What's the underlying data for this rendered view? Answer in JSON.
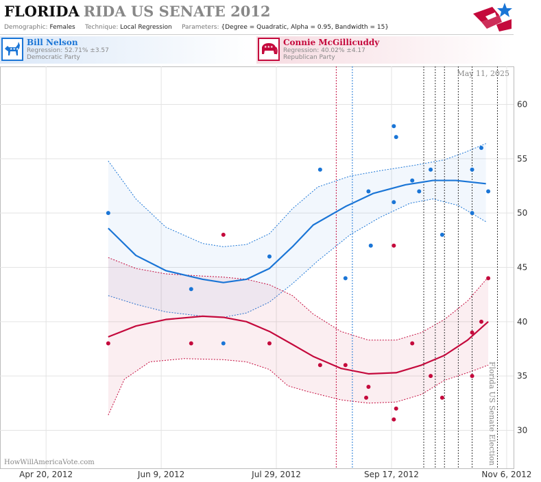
{
  "header": {
    "state": "FLORIDA",
    "race": "RIDA US SENATE 2012",
    "demographic_label": "Demographic:",
    "demographic_value": "Females",
    "technique_label": "Technique:",
    "technique_value": "Local Regression",
    "parameters_label": "Parameters:",
    "parameters_value": "{Degree = Quadratic, Alpha = 0.95, Bandwidth = 15}",
    "logo_icon": "star-flag-logo-icon"
  },
  "candidates": {
    "dem": {
      "name": "Bill Nelson",
      "regression": "Regression: 52.71% ±3.57",
      "party": "Democratic Party",
      "color": "#1a75d6",
      "icon": "donkey-icon"
    },
    "rep": {
      "name": "Connie McGillicuddy",
      "regression": "Regression: 40.02% ±4.17",
      "party": "Republican Party",
      "color": "#c4093c",
      "icon": "elephant-icon"
    }
  },
  "chart_data": {
    "type": "scatter",
    "date_stamp": "May 11, 2025",
    "watermark": "HowWillAmericaVote.com",
    "election_label": "Florida US Senate Election",
    "x_ticks": [
      "Apr 20, 2012",
      "Jun 9, 2012",
      "Jul 29, 2012",
      "Sep 17, 2012",
      "Nov 6, 2012"
    ],
    "xlim": [
      "2012-03-31",
      "2012-11-09"
    ],
    "y_ticks": [
      30,
      35,
      40,
      45,
      50,
      55,
      60
    ],
    "ylim": [
      26.5,
      63.5
    ],
    "grid": true,
    "series": [
      {
        "name": "Bill Nelson",
        "party": "dem",
        "color": "#1a75d6",
        "points": [
          [
            "2012-05-17",
            50
          ],
          [
            "2012-06-22",
            43
          ],
          [
            "2012-07-06",
            38
          ],
          [
            "2012-07-26",
            46
          ],
          [
            "2012-08-17",
            54
          ],
          [
            "2012-08-28",
            44
          ],
          [
            "2012-09-07",
            52
          ],
          [
            "2012-09-08",
            47
          ],
          [
            "2012-09-18",
            58
          ],
          [
            "2012-09-19",
            57
          ],
          [
            "2012-09-18",
            51
          ],
          [
            "2012-09-26",
            53
          ],
          [
            "2012-09-29",
            52
          ],
          [
            "2012-10-04",
            54
          ],
          [
            "2012-10-09",
            48
          ],
          [
            "2012-10-22",
            54
          ],
          [
            "2012-10-22",
            50
          ],
          [
            "2012-10-26",
            56
          ],
          [
            "2012-10-29",
            52
          ]
        ],
        "trend": [
          [
            "2012-05-17",
            48.6
          ],
          [
            "2012-05-29",
            46.1
          ],
          [
            "2012-06-11",
            44.7
          ],
          [
            "2012-06-27",
            43.9
          ],
          [
            "2012-07-06",
            43.6
          ],
          [
            "2012-07-16",
            43.9
          ],
          [
            "2012-07-26",
            44.9
          ],
          [
            "2012-08-05",
            46.9
          ],
          [
            "2012-08-14",
            48.9
          ],
          [
            "2012-08-28",
            50.6
          ],
          [
            "2012-09-09",
            51.8
          ],
          [
            "2012-09-23",
            52.6
          ],
          [
            "2012-10-05",
            53.0
          ],
          [
            "2012-10-15",
            53.0
          ],
          [
            "2012-10-28",
            52.7
          ]
        ],
        "upper": [
          [
            "2012-05-17",
            54.8
          ],
          [
            "2012-05-29",
            51.3
          ],
          [
            "2012-06-11",
            48.7
          ],
          [
            "2012-06-27",
            47.2
          ],
          [
            "2012-07-06",
            46.9
          ],
          [
            "2012-07-16",
            47.1
          ],
          [
            "2012-07-26",
            48.1
          ],
          [
            "2012-08-05",
            50.4
          ],
          [
            "2012-08-16",
            52.4
          ],
          [
            "2012-08-30",
            53.4
          ],
          [
            "2012-09-12",
            53.9
          ],
          [
            "2012-09-27",
            54.4
          ],
          [
            "2012-10-10",
            54.9
          ],
          [
            "2012-10-19",
            55.6
          ],
          [
            "2012-10-28",
            56.4
          ]
        ],
        "lower": [
          [
            "2012-05-17",
            42.4
          ],
          [
            "2012-05-29",
            41.6
          ],
          [
            "2012-06-11",
            40.9
          ],
          [
            "2012-06-27",
            40.5
          ],
          [
            "2012-07-06",
            40.4
          ],
          [
            "2012-07-16",
            40.8
          ],
          [
            "2012-07-26",
            41.8
          ],
          [
            "2012-08-05",
            43.5
          ],
          [
            "2012-08-16",
            45.6
          ],
          [
            "2012-08-30",
            48.0
          ],
          [
            "2012-09-12",
            49.6
          ],
          [
            "2012-09-25",
            50.9
          ],
          [
            "2012-10-05",
            51.3
          ],
          [
            "2012-10-16",
            50.7
          ],
          [
            "2012-10-28",
            49.2
          ]
        ]
      },
      {
        "name": "Connie McGillicuddy",
        "party": "rep",
        "color": "#c4093c",
        "points": [
          [
            "2012-05-17",
            38
          ],
          [
            "2012-06-22",
            38
          ],
          [
            "2012-07-06",
            48
          ],
          [
            "2012-07-26",
            38
          ],
          [
            "2012-08-17",
            36
          ],
          [
            "2012-08-28",
            36
          ],
          [
            "2012-09-06",
            33
          ],
          [
            "2012-09-07",
            34
          ],
          [
            "2012-09-18",
            31
          ],
          [
            "2012-09-19",
            32
          ],
          [
            "2012-09-18",
            47
          ],
          [
            "2012-09-26",
            38
          ],
          [
            "2012-10-04",
            35
          ],
          [
            "2012-10-09",
            33
          ],
          [
            "2012-10-22",
            35
          ],
          [
            "2012-10-22",
            39
          ],
          [
            "2012-10-26",
            40
          ],
          [
            "2012-10-29",
            44
          ]
        ],
        "trend": [
          [
            "2012-05-17",
            38.6
          ],
          [
            "2012-05-29",
            39.6
          ],
          [
            "2012-06-11",
            40.2
          ],
          [
            "2012-06-27",
            40.5
          ],
          [
            "2012-07-06",
            40.4
          ],
          [
            "2012-07-16",
            40.0
          ],
          [
            "2012-07-26",
            39.1
          ],
          [
            "2012-08-05",
            37.9
          ],
          [
            "2012-08-14",
            36.8
          ],
          [
            "2012-08-26",
            35.7
          ],
          [
            "2012-09-07",
            35.2
          ],
          [
            "2012-09-19",
            35.3
          ],
          [
            "2012-09-30",
            36.0
          ],
          [
            "2012-10-10",
            36.9
          ],
          [
            "2012-10-20",
            38.3
          ],
          [
            "2012-10-29",
            40.0
          ]
        ],
        "upper": [
          [
            "2012-05-17",
            45.9
          ],
          [
            "2012-05-29",
            44.9
          ],
          [
            "2012-06-11",
            44.4
          ],
          [
            "2012-06-27",
            44.2
          ],
          [
            "2012-07-06",
            44.1
          ],
          [
            "2012-07-16",
            43.9
          ],
          [
            "2012-07-26",
            43.4
          ],
          [
            "2012-08-05",
            42.4
          ],
          [
            "2012-08-14",
            40.7
          ],
          [
            "2012-08-26",
            39.1
          ],
          [
            "2012-09-07",
            38.3
          ],
          [
            "2012-09-19",
            38.3
          ],
          [
            "2012-09-30",
            39.0
          ],
          [
            "2012-10-10",
            40.2
          ],
          [
            "2012-10-20",
            41.9
          ],
          [
            "2012-10-29",
            44.1
          ]
        ],
        "lower": [
          [
            "2012-05-17",
            31.4
          ],
          [
            "2012-05-24",
            34.7
          ],
          [
            "2012-06-04",
            36.3
          ],
          [
            "2012-06-19",
            36.6
          ],
          [
            "2012-07-06",
            36.5
          ],
          [
            "2012-07-16",
            36.3
          ],
          [
            "2012-07-26",
            35.6
          ],
          [
            "2012-08-03",
            34.1
          ],
          [
            "2012-08-11",
            33.6
          ],
          [
            "2012-08-26",
            32.8
          ],
          [
            "2012-09-07",
            32.5
          ],
          [
            "2012-09-19",
            32.6
          ],
          [
            "2012-09-30",
            33.3
          ],
          [
            "2012-10-10",
            34.6
          ],
          [
            "2012-10-20",
            35.3
          ],
          [
            "2012-10-29",
            36.0
          ]
        ]
      }
    ],
    "event_lines": [
      {
        "date": "2012-08-24",
        "style": "red-blue-dash"
      },
      {
        "date": "2012-08-31",
        "style": "blue-dash"
      },
      {
        "date": "2012-10-01",
        "style": "black-dash"
      },
      {
        "date": "2012-10-06",
        "style": "black-dash"
      },
      {
        "date": "2012-10-10",
        "style": "black-dash"
      },
      {
        "date": "2012-10-16",
        "style": "black-dash"
      },
      {
        "date": "2012-10-22",
        "style": "black-dash"
      },
      {
        "date": "2012-11-02",
        "style": "black-dash"
      }
    ]
  }
}
